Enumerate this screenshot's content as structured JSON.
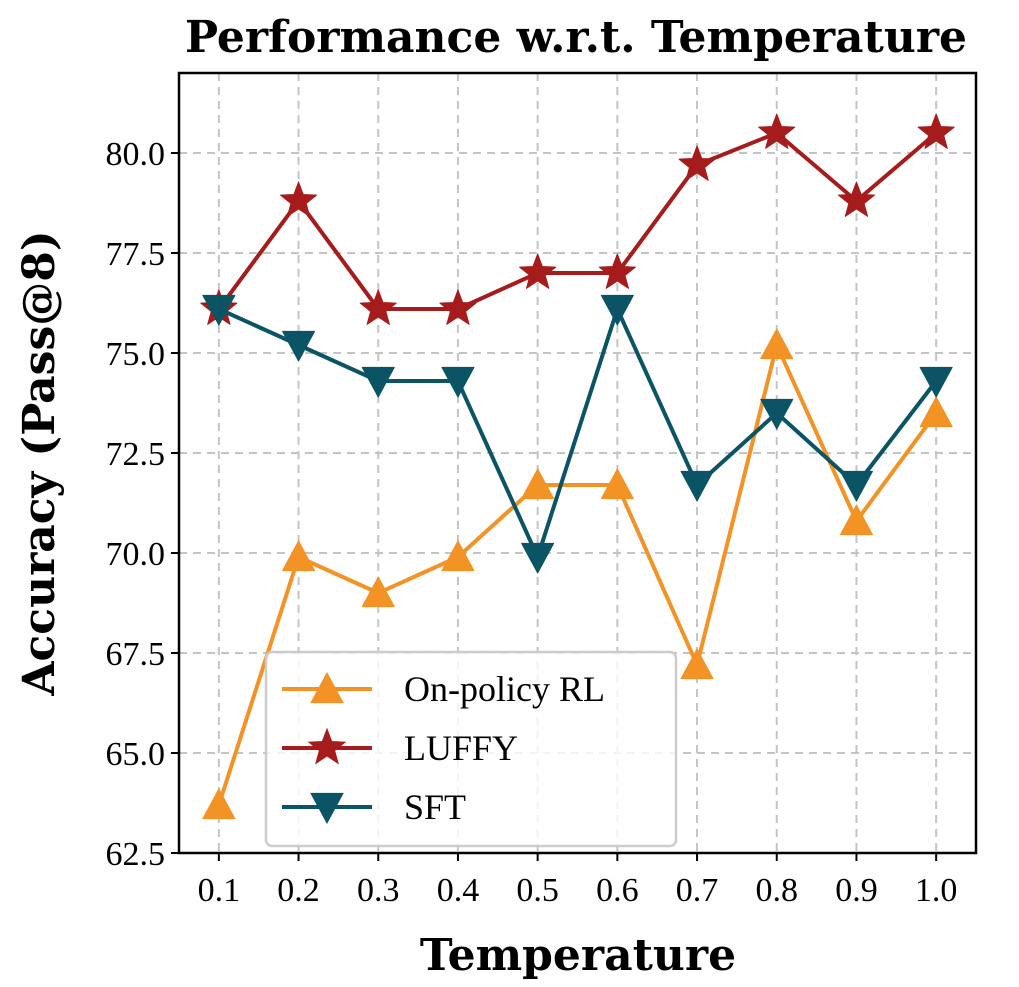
{
  "chart_data": {
    "type": "line",
    "title": "Performance w.r.t. Temperature",
    "xlabel": "Temperature",
    "ylabel": "Accuracy (Pass@8)",
    "x": [
      0.1,
      0.2,
      0.3,
      0.4,
      0.5,
      0.6,
      0.7,
      0.8,
      0.9,
      1.0
    ],
    "x_tick_labels": [
      "0.1",
      "0.2",
      "0.3",
      "0.4",
      "0.5",
      "0.6",
      "0.7",
      "0.8",
      "0.9",
      "1.0"
    ],
    "y_ticks": [
      62.5,
      65.0,
      67.5,
      70.0,
      72.5,
      75.0,
      77.5,
      80.0
    ],
    "y_tick_labels": [
      "62.5",
      "65.0",
      "67.5",
      "70.0",
      "72.5",
      "75.0",
      "77.5",
      "80.0"
    ],
    "xlim": [
      0.05,
      1.05
    ],
    "ylim": [
      62.5,
      82.0
    ],
    "grid": true,
    "legend_position": "lower-left",
    "series": [
      {
        "name": "On-policy RL",
        "color": "#f39325",
        "marker": "triangle-up",
        "values": [
          63.7,
          69.9,
          69.0,
          69.9,
          71.7,
          71.7,
          67.2,
          75.2,
          70.8,
          73.5
        ]
      },
      {
        "name": "LUFFY",
        "color": "#a61c1c",
        "marker": "star",
        "values": [
          76.1,
          78.8,
          76.1,
          76.1,
          77.0,
          77.0,
          79.7,
          80.5,
          78.8,
          80.5
        ]
      },
      {
        "name": "SFT",
        "color": "#0a5466",
        "marker": "triangle-down",
        "values": [
          76.1,
          75.2,
          74.3,
          74.3,
          69.9,
          76.1,
          71.7,
          73.5,
          71.7,
          74.3
        ]
      }
    ]
  }
}
